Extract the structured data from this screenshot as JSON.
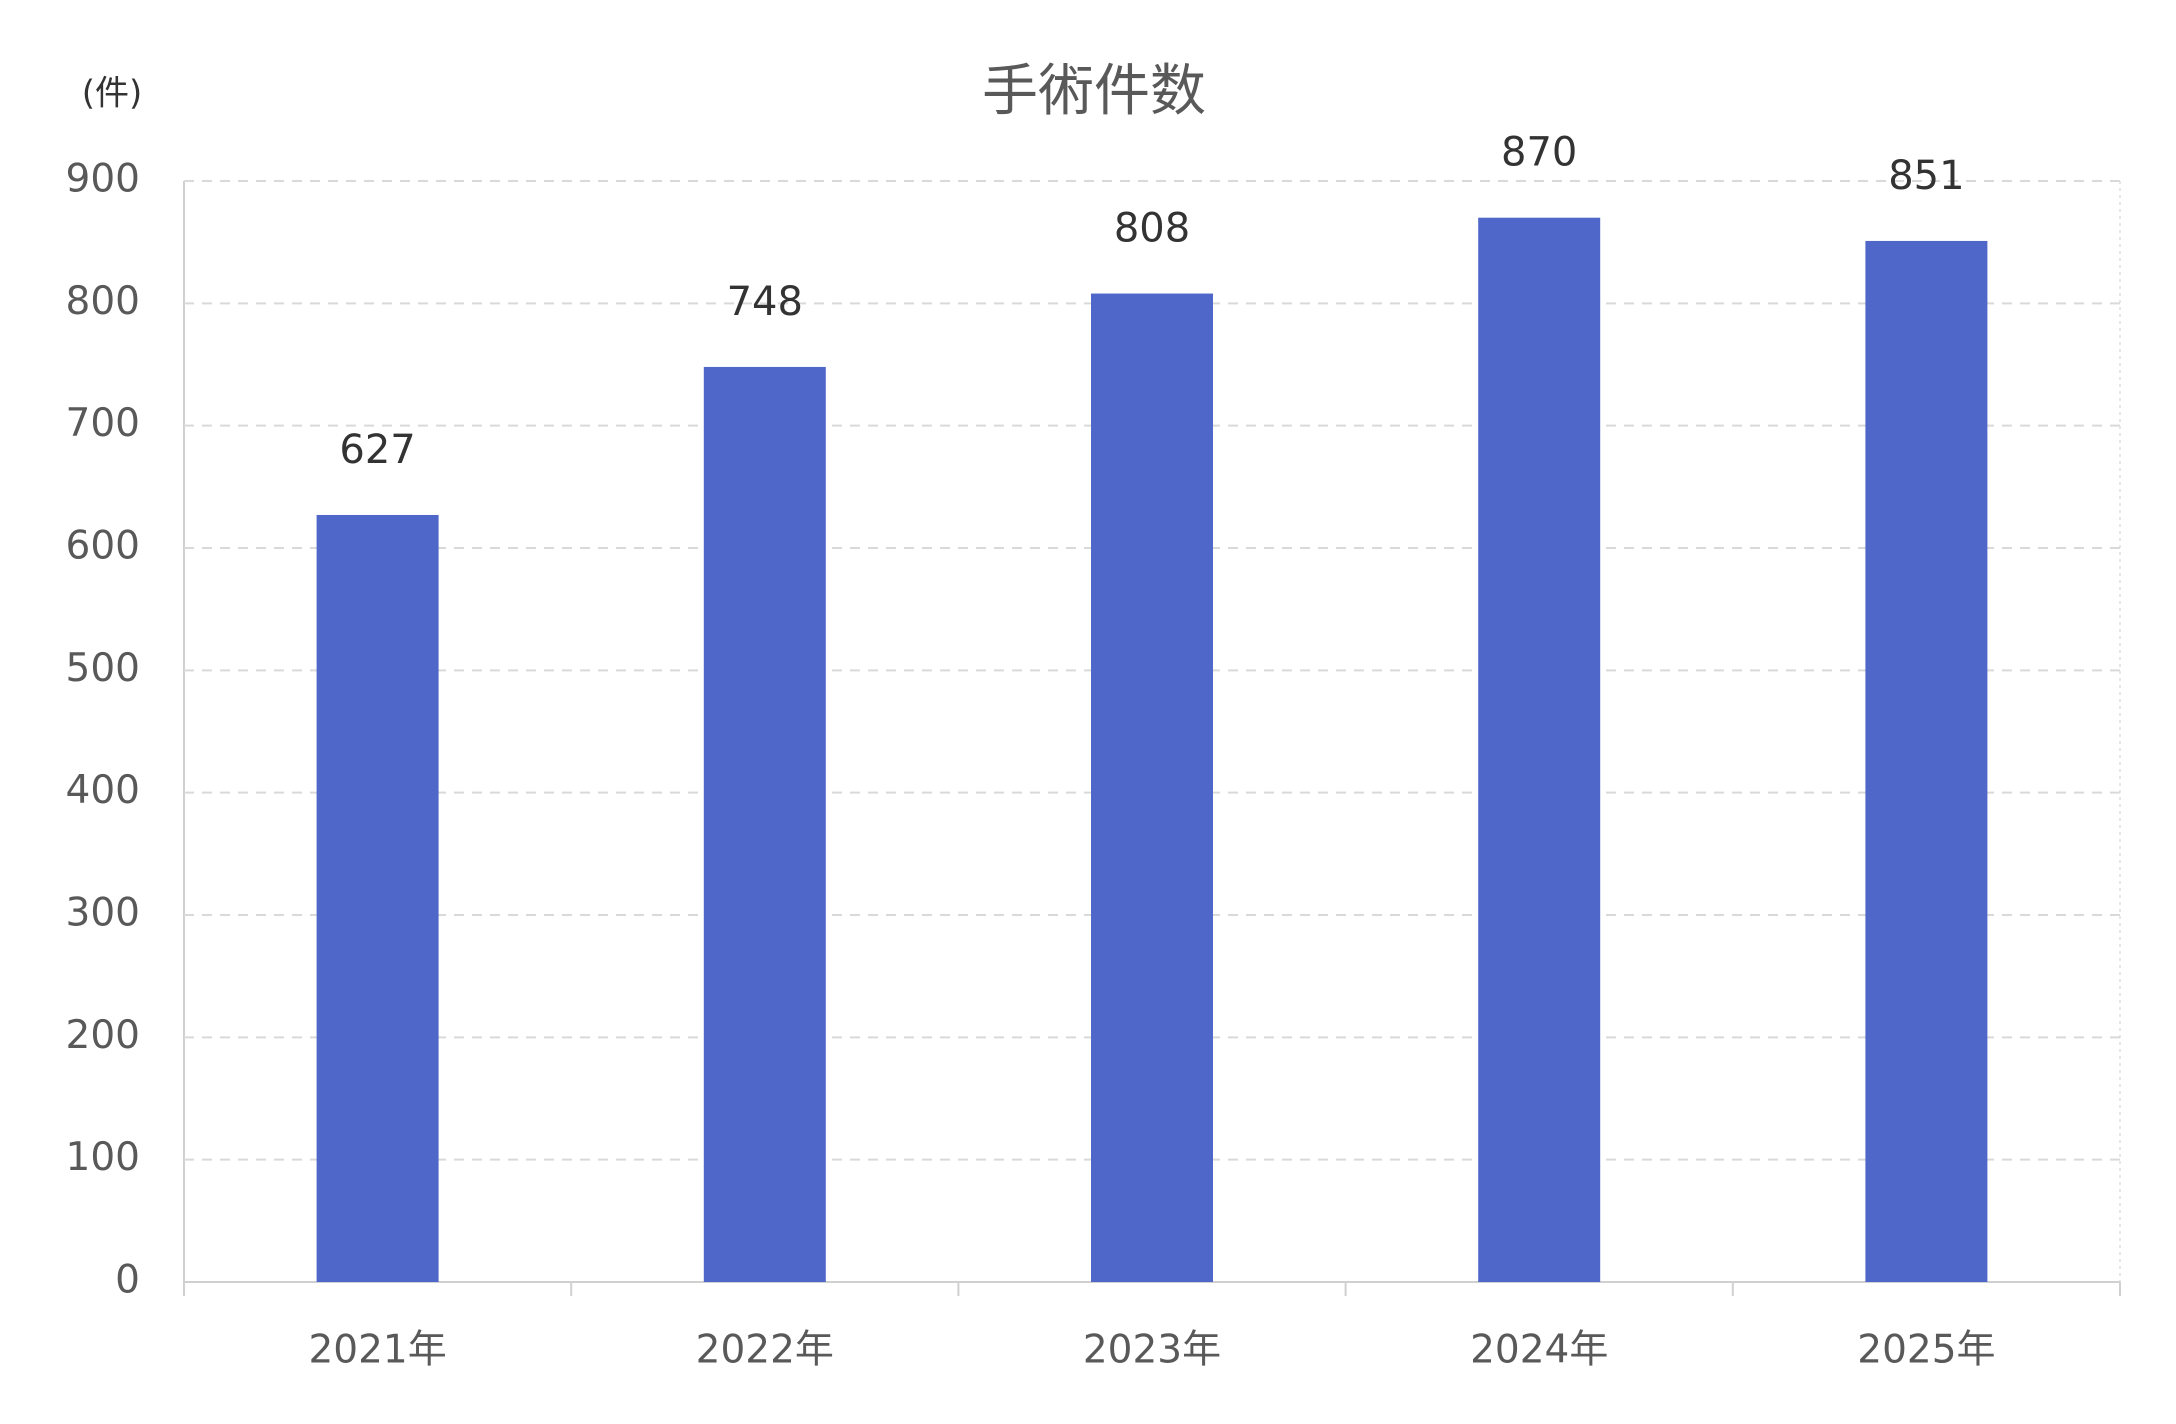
{
  "chart_data": {
    "type": "bar",
    "title": "手術件数",
    "y_label": "(件)",
    "categories": [
      "2021年",
      "2022年",
      "2023年",
      "2024年",
      "2025年"
    ],
    "values": [
      627,
      748,
      808,
      870,
      851
    ],
    "color": "#4f67c8",
    "ylim": [
      0,
      900
    ],
    "yticks": [
      0,
      100,
      200,
      300,
      400,
      500,
      600,
      700,
      800,
      900
    ],
    "grid": true
  }
}
